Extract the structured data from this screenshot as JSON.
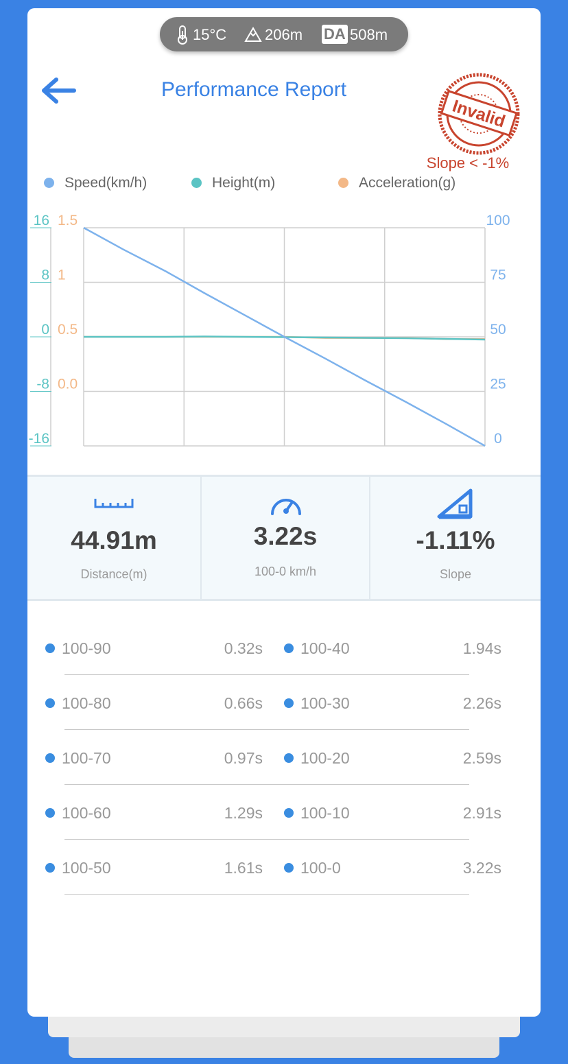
{
  "status": {
    "temperature": "15°C",
    "altitude": "206m",
    "da_label": "DA",
    "density_altitude": "508m"
  },
  "header": {
    "title": "Performance Report",
    "stamp": "Invalid",
    "stamp_note": "Slope < -1%"
  },
  "chart_data": {
    "type": "line",
    "x": [
      0,
      0.32,
      0.66,
      0.97,
      1.29,
      1.61,
      1.94,
      2.26,
      2.59,
      2.91,
      3.22
    ],
    "xlim": [
      0,
      3.22
    ],
    "series": [
      {
        "name": "Speed(km/h)",
        "color": "#7db2ec",
        "axis": "y3",
        "values": [
          100,
          90,
          80,
          70,
          60,
          50,
          40,
          30,
          20,
          10,
          0
        ]
      },
      {
        "name": "Height(m)",
        "color": "#5bc4c4",
        "axis": "y",
        "values": [
          0,
          0,
          0,
          0.05,
          0,
          -0.05,
          -0.1,
          -0.15,
          -0.2,
          -0.3,
          -0.4
        ]
      },
      {
        "name": "Acceleration(g)",
        "color": "#f3b887",
        "axis": "y2",
        "values": [
          0.5,
          0.5,
          0.5,
          0.5,
          0.5,
          0.5,
          0.49,
          0.49,
          0.49,
          0.48,
          0.48
        ]
      }
    ],
    "ylim": [
      -16,
      16
    ],
    "yticks": [
      16,
      8,
      0,
      -8,
      -16
    ],
    "y2lim": [
      -0.5,
      1.5
    ],
    "y2ticks": [
      1.5,
      1,
      0.5,
      {
        "value": 0,
        "label": "0.0"
      }
    ],
    "y3lim": [
      0,
      100
    ],
    "y3ticks": [
      100,
      75,
      50,
      25,
      0
    ],
    "grid": true
  },
  "stats": [
    {
      "value": "44.91m",
      "label": "Distance(m)"
    },
    {
      "value": "3.22s",
      "label": "100-0 km/h"
    },
    {
      "value": "-1.11%",
      "label": "Slope"
    }
  ],
  "splits": [
    {
      "label": "100-90",
      "time": "0.32s"
    },
    {
      "label": "100-40",
      "time": "1.94s"
    },
    {
      "label": "100-80",
      "time": "0.66s"
    },
    {
      "label": "100-30",
      "time": "2.26s"
    },
    {
      "label": "100-70",
      "time": "0.97s"
    },
    {
      "label": "100-20",
      "time": "2.59s"
    },
    {
      "label": "100-60",
      "time": "1.29s"
    },
    {
      "label": "100-10",
      "time": "2.91s"
    },
    {
      "label": "100-50",
      "time": "1.61s"
    },
    {
      "label": "100-0",
      "time": "3.22s"
    }
  ]
}
